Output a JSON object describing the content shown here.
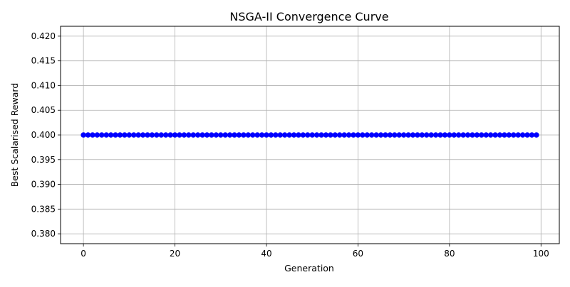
{
  "chart_data": {
    "type": "line",
    "title": "NSGA-II Convergence Curve",
    "xlabel": "Generation",
    "ylabel": "Best Scalarised Reward",
    "xlim": [
      -5,
      104
    ],
    "ylim": [
      0.378,
      0.422
    ],
    "x_ticks": [
      0,
      20,
      40,
      60,
      80,
      100
    ],
    "y_ticks": [
      0.38,
      0.385,
      0.39,
      0.395,
      0.4,
      0.405,
      0.41,
      0.415,
      0.42
    ],
    "grid": true,
    "marker": "circle",
    "series": [
      {
        "x_start": 0,
        "x_end": 99,
        "x_step": 1,
        "constant_value": 0.4,
        "color": "#0000ff"
      }
    ]
  }
}
